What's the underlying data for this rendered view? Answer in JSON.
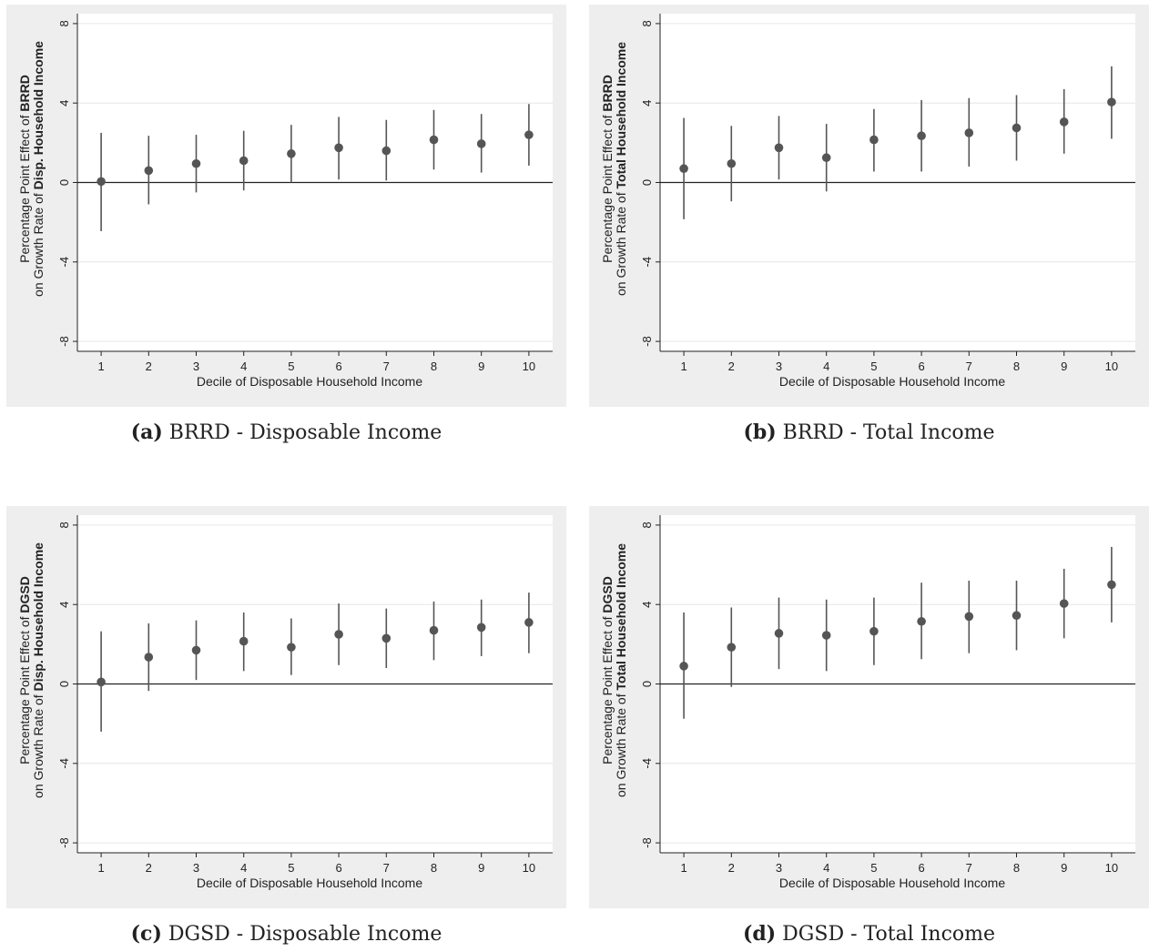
{
  "charts": [
    {
      "caption_label": "(a)",
      "caption_text": "BRRD - Disposable Income",
      "ylabel_line1": "Percentage Point Effect of ",
      "ylabel_line1_bold": "BRRD",
      "ylabel_line2": "on Growth Rate of ",
      "ylabel_line2_bold": "Disp. Household Income",
      "xlabel": "Decile of Disposable Household Income"
    },
    {
      "caption_label": "(b)",
      "caption_text": "BRRD - Total Income",
      "ylabel_line1": "Percentage Point Effect of ",
      "ylabel_line1_bold": "BRRD",
      "ylabel_line2": "on Growth Rate of ",
      "ylabel_line2_bold": "Total Household Income",
      "xlabel": "Decile of Disposable Household Income"
    },
    {
      "caption_label": "(c)",
      "caption_text": "DGSD - Disposable Income",
      "ylabel_line1": "Percentage Point Effect of ",
      "ylabel_line1_bold": "DGSD",
      "ylabel_line2": "on Growth Rate of ",
      "ylabel_line2_bold": "Disp. Household Income",
      "xlabel": "Decile of Disposable Household Income"
    },
    {
      "caption_label": "(d)",
      "caption_text": "DGSD - Total Income",
      "ylabel_line1": "Percentage Point Effect of ",
      "ylabel_line1_bold": "DGSD",
      "ylabel_line2": "on Growth Rate of ",
      "ylabel_line2_bold": "Total Household Income",
      "xlabel": "Decile of Disposable Household Income"
    }
  ],
  "colors": {
    "plot_bg": "#ffffff",
    "outer_bg": "#eeeeee",
    "marker": "#555555",
    "grid": "#e6e6e6",
    "zero_line": "#222222"
  },
  "chart_data": [
    {
      "type": "scatter",
      "title": "",
      "xlabel": "Decile of Disposable Household Income",
      "ylabel": "Percentage Point Effect of BRRD on Growth Rate of Disp. Household Income",
      "x": [
        1,
        2,
        3,
        4,
        5,
        6,
        7,
        8,
        9,
        10
      ],
      "y": [
        0.05,
        0.6,
        0.95,
        1.1,
        1.45,
        1.75,
        1.6,
        2.15,
        1.95,
        2.4
      ],
      "ci_low": [
        -2.45,
        -1.1,
        -0.5,
        -0.4,
        0.0,
        0.15,
        0.1,
        0.65,
        0.5,
        0.85
      ],
      "ci_high": [
        2.5,
        2.35,
        2.4,
        2.6,
        2.9,
        3.3,
        3.15,
        3.65,
        3.45,
        3.95
      ],
      "yticks": [
        -8,
        -4,
        0,
        4,
        8
      ],
      "xticks": [
        1,
        2,
        3,
        4,
        5,
        6,
        7,
        8,
        9,
        10
      ],
      "ylim": [
        -8.5,
        8.5
      ],
      "xlim": [
        0.5,
        10.5
      ],
      "grid": true
    },
    {
      "type": "scatter",
      "title": "",
      "xlabel": "Decile of Disposable Household Income",
      "ylabel": "Percentage Point Effect of BRRD on Growth Rate of Total Household Income",
      "x": [
        1,
        2,
        3,
        4,
        5,
        6,
        7,
        8,
        9,
        10
      ],
      "y": [
        0.7,
        0.95,
        1.75,
        1.25,
        2.15,
        2.35,
        2.5,
        2.75,
        3.05,
        4.05
      ],
      "ci_low": [
        -1.85,
        -0.95,
        0.15,
        -0.45,
        0.55,
        0.55,
        0.8,
        1.1,
        1.45,
        2.2
      ],
      "ci_high": [
        3.25,
        2.85,
        3.35,
        2.95,
        3.7,
        4.15,
        4.25,
        4.4,
        4.7,
        5.85
      ],
      "yticks": [
        -8,
        -4,
        0,
        4,
        8
      ],
      "xticks": [
        1,
        2,
        3,
        4,
        5,
        6,
        7,
        8,
        9,
        10
      ],
      "ylim": [
        -8.5,
        8.5
      ],
      "xlim": [
        0.5,
        10.5
      ],
      "grid": true
    },
    {
      "type": "scatter",
      "title": "",
      "xlabel": "Decile of Disposable Household Income",
      "ylabel": "Percentage Point Effect of DGSD on Growth Rate of Disp. Household Income",
      "x": [
        1,
        2,
        3,
        4,
        5,
        6,
        7,
        8,
        9,
        10
      ],
      "y": [
        0.1,
        1.35,
        1.7,
        2.15,
        1.85,
        2.5,
        2.3,
        2.7,
        2.85,
        3.1
      ],
      "ci_low": [
        -2.4,
        -0.35,
        0.2,
        0.65,
        0.45,
        0.95,
        0.8,
        1.2,
        1.4,
        1.55
      ],
      "ci_high": [
        2.65,
        3.05,
        3.2,
        3.6,
        3.3,
        4.05,
        3.8,
        4.15,
        4.25,
        4.6
      ],
      "yticks": [
        -8,
        -4,
        0,
        4,
        8
      ],
      "xticks": [
        1,
        2,
        3,
        4,
        5,
        6,
        7,
        8,
        9,
        10
      ],
      "ylim": [
        -8.5,
        8.5
      ],
      "xlim": [
        0.5,
        10.5
      ],
      "grid": true
    },
    {
      "type": "scatter",
      "title": "",
      "xlabel": "Decile of Disposable Household Income",
      "ylabel": "Percentage Point Effect of DGSD on Growth Rate of Total Household Income",
      "x": [
        1,
        2,
        3,
        4,
        5,
        6,
        7,
        8,
        9,
        10
      ],
      "y": [
        0.9,
        1.85,
        2.55,
        2.45,
        2.65,
        3.15,
        3.4,
        3.45,
        4.05,
        5.0
      ],
      "ci_low": [
        -1.75,
        -0.15,
        0.75,
        0.65,
        0.95,
        1.25,
        1.55,
        1.7,
        2.3,
        3.1
      ],
      "ci_high": [
        3.6,
        3.85,
        4.35,
        4.25,
        4.35,
        5.1,
        5.2,
        5.2,
        5.8,
        6.9
      ],
      "yticks": [
        -8,
        -4,
        0,
        4,
        8
      ],
      "xticks": [
        1,
        2,
        3,
        4,
        5,
        6,
        7,
        8,
        9,
        10
      ],
      "ylim": [
        -8.5,
        8.5
      ],
      "xlim": [
        0.5,
        10.5
      ],
      "grid": true
    }
  ]
}
